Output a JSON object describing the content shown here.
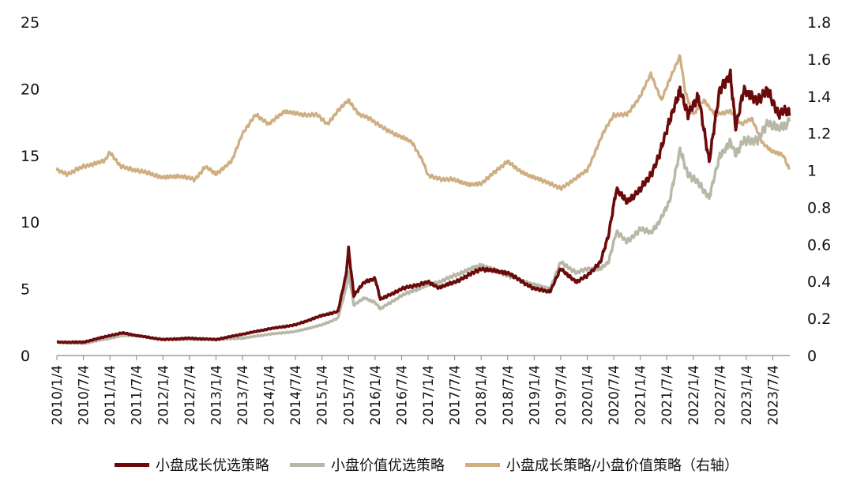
{
  "chart_data": {
    "type": "line",
    "x_tick_labels": [
      "2010/1/4",
      "2010/7/4",
      "2011/1/4",
      "2011/7/4",
      "2012/1/4",
      "2012/7/4",
      "2013/1/4",
      "2013/7/4",
      "2014/1/4",
      "2014/7/4",
      "2015/1/4",
      "2015/7/4",
      "2016/1/4",
      "2016/7/4",
      "2017/1/4",
      "2017/7/4",
      "2018/1/4",
      "2018/7/4",
      "2019/1/4",
      "2019/7/4",
      "2020/1/4",
      "2020/7/4",
      "2021/1/4",
      "2021/7/4",
      "2022/1/4",
      "2022/7/4",
      "2023/1/4",
      "2023/7/4"
    ],
    "y_left": {
      "range": [
        0,
        25
      ],
      "ticks": [
        "0",
        "5",
        "10",
        "15",
        "20",
        "25"
      ]
    },
    "y_right": {
      "range": [
        0,
        1.8
      ],
      "ticks": [
        "0",
        "0.2",
        "0.4",
        "0.6",
        "0.8",
        "1",
        "1.2",
        "1.4",
        "1.6",
        "1.8"
      ]
    },
    "grid": false,
    "legend_position": "bottom",
    "series": [
      {
        "name": "小盘成长优选策略",
        "axis": "left",
        "color": "#6b0a0a",
        "points": [
          [
            2010.0,
            1.0
          ],
          [
            2010.5,
            1.0
          ],
          [
            2011.0,
            1.5
          ],
          [
            2011.25,
            1.7
          ],
          [
            2011.5,
            1.5
          ],
          [
            2012.0,
            1.2
          ],
          [
            2012.5,
            1.3
          ],
          [
            2013.0,
            1.2
          ],
          [
            2013.5,
            1.6
          ],
          [
            2014.0,
            2.0
          ],
          [
            2014.5,
            2.3
          ],
          [
            2015.0,
            3.0
          ],
          [
            2015.3,
            3.3
          ],
          [
            2015.45,
            6.0
          ],
          [
            2015.5,
            8.0
          ],
          [
            2015.6,
            4.5
          ],
          [
            2015.8,
            5.5
          ],
          [
            2016.0,
            5.8
          ],
          [
            2016.1,
            4.2
          ],
          [
            2016.5,
            5.0
          ],
          [
            2017.0,
            5.5
          ],
          [
            2017.2,
            5.1
          ],
          [
            2017.5,
            5.5
          ],
          [
            2018.0,
            6.5
          ],
          [
            2018.5,
            6.2
          ],
          [
            2019.0,
            5.0
          ],
          [
            2019.3,
            4.8
          ],
          [
            2019.5,
            6.5
          ],
          [
            2019.8,
            5.5
          ],
          [
            2020.0,
            6.0
          ],
          [
            2020.25,
            7.0
          ],
          [
            2020.4,
            9.0
          ],
          [
            2020.55,
            12.5
          ],
          [
            2020.75,
            11.5
          ],
          [
            2021.0,
            12.5
          ],
          [
            2021.2,
            13.5
          ],
          [
            2021.35,
            15.0
          ],
          [
            2021.55,
            17.5
          ],
          [
            2021.75,
            20.0
          ],
          [
            2021.9,
            18.0
          ],
          [
            2022.1,
            19.5
          ],
          [
            2022.3,
            14.5
          ],
          [
            2022.5,
            20.0
          ],
          [
            2022.7,
            21.0
          ],
          [
            2022.8,
            17.0
          ],
          [
            2022.95,
            20.0
          ],
          [
            2023.2,
            19.0
          ],
          [
            2023.4,
            20.0
          ],
          [
            2023.6,
            18.0
          ],
          [
            2023.75,
            18.5
          ],
          [
            2023.82,
            18.2
          ]
        ]
      },
      {
        "name": "小盘价值优选策略",
        "axis": "left",
        "color": "#b8b8a8",
        "points": [
          [
            2010.0,
            1.0
          ],
          [
            2010.5,
            0.9
          ],
          [
            2011.0,
            1.3
          ],
          [
            2011.25,
            1.5
          ],
          [
            2011.5,
            1.5
          ],
          [
            2012.0,
            1.2
          ],
          [
            2012.5,
            1.2
          ],
          [
            2013.0,
            1.2
          ],
          [
            2013.5,
            1.3
          ],
          [
            2014.0,
            1.6
          ],
          [
            2014.5,
            1.8
          ],
          [
            2015.0,
            2.3
          ],
          [
            2015.3,
            2.8
          ],
          [
            2015.45,
            5.0
          ],
          [
            2015.5,
            6.2
          ],
          [
            2015.6,
            3.8
          ],
          [
            2015.8,
            4.3
          ],
          [
            2016.0,
            4.0
          ],
          [
            2016.1,
            3.5
          ],
          [
            2016.5,
            4.5
          ],
          [
            2017.0,
            5.3
          ],
          [
            2017.2,
            5.5
          ],
          [
            2017.5,
            6.0
          ],
          [
            2018.0,
            6.8
          ],
          [
            2018.5,
            6.0
          ],
          [
            2019.0,
            5.3
          ],
          [
            2019.3,
            5.0
          ],
          [
            2019.5,
            7.0
          ],
          [
            2019.8,
            6.2
          ],
          [
            2020.0,
            6.5
          ],
          [
            2020.25,
            6.5
          ],
          [
            2020.4,
            7.0
          ],
          [
            2020.55,
            9.3
          ],
          [
            2020.75,
            8.5
          ],
          [
            2021.0,
            9.5
          ],
          [
            2021.2,
            9.2
          ],
          [
            2021.35,
            10.0
          ],
          [
            2021.55,
            11.5
          ],
          [
            2021.75,
            15.5
          ],
          [
            2021.9,
            13.5
          ],
          [
            2022.1,
            13.0
          ],
          [
            2022.3,
            11.8
          ],
          [
            2022.5,
            15.0
          ],
          [
            2022.7,
            16.0
          ],
          [
            2022.8,
            15.0
          ],
          [
            2022.95,
            16.2
          ],
          [
            2023.2,
            16.0
          ],
          [
            2023.4,
            17.5
          ],
          [
            2023.6,
            17.0
          ],
          [
            2023.75,
            17.3
          ],
          [
            2023.82,
            17.8
          ]
        ]
      },
      {
        "name": "小盘成长策略/小盘价值策略（右轴）",
        "axis": "right",
        "color": "#cfae82",
        "points": [
          [
            2010.0,
            1.0
          ],
          [
            2010.2,
            0.98
          ],
          [
            2010.5,
            1.02
          ],
          [
            2010.9,
            1.05
          ],
          [
            2011.0,
            1.1
          ],
          [
            2011.2,
            1.02
          ],
          [
            2011.5,
            1.0
          ],
          [
            2011.8,
            0.98
          ],
          [
            2012.0,
            0.96
          ],
          [
            2012.3,
            0.97
          ],
          [
            2012.6,
            0.95
          ],
          [
            2012.8,
            1.02
          ],
          [
            2013.0,
            0.98
          ],
          [
            2013.3,
            1.05
          ],
          [
            2013.5,
            1.2
          ],
          [
            2013.75,
            1.3
          ],
          [
            2014.0,
            1.25
          ],
          [
            2014.3,
            1.32
          ],
          [
            2014.6,
            1.3
          ],
          [
            2014.9,
            1.3
          ],
          [
            2015.1,
            1.25
          ],
          [
            2015.3,
            1.32
          ],
          [
            2015.5,
            1.38
          ],
          [
            2015.7,
            1.3
          ],
          [
            2015.9,
            1.28
          ],
          [
            2016.2,
            1.22
          ],
          [
            2016.5,
            1.18
          ],
          [
            2016.7,
            1.15
          ],
          [
            2016.9,
            1.05
          ],
          [
            2017.0,
            0.97
          ],
          [
            2017.3,
            0.95
          ],
          [
            2017.5,
            0.95
          ],
          [
            2017.8,
            0.92
          ],
          [
            2018.0,
            0.93
          ],
          [
            2018.3,
            1.0
          ],
          [
            2018.5,
            1.05
          ],
          [
            2018.7,
            1.0
          ],
          [
            2019.0,
            0.96
          ],
          [
            2019.3,
            0.93
          ],
          [
            2019.5,
            0.9
          ],
          [
            2019.8,
            0.96
          ],
          [
            2020.0,
            1.0
          ],
          [
            2020.3,
            1.2
          ],
          [
            2020.5,
            1.3
          ],
          [
            2020.75,
            1.3
          ],
          [
            2021.0,
            1.4
          ],
          [
            2021.2,
            1.52
          ],
          [
            2021.4,
            1.38
          ],
          [
            2021.6,
            1.52
          ],
          [
            2021.75,
            1.62
          ],
          [
            2021.85,
            1.42
          ],
          [
            2022.0,
            1.3
          ],
          [
            2022.2,
            1.38
          ],
          [
            2022.4,
            1.3
          ],
          [
            2022.7,
            1.32
          ],
          [
            2022.9,
            1.25
          ],
          [
            2023.1,
            1.28
          ],
          [
            2023.3,
            1.15
          ],
          [
            2023.5,
            1.1
          ],
          [
            2023.7,
            1.08
          ],
          [
            2023.82,
            1.0
          ]
        ]
      }
    ]
  }
}
